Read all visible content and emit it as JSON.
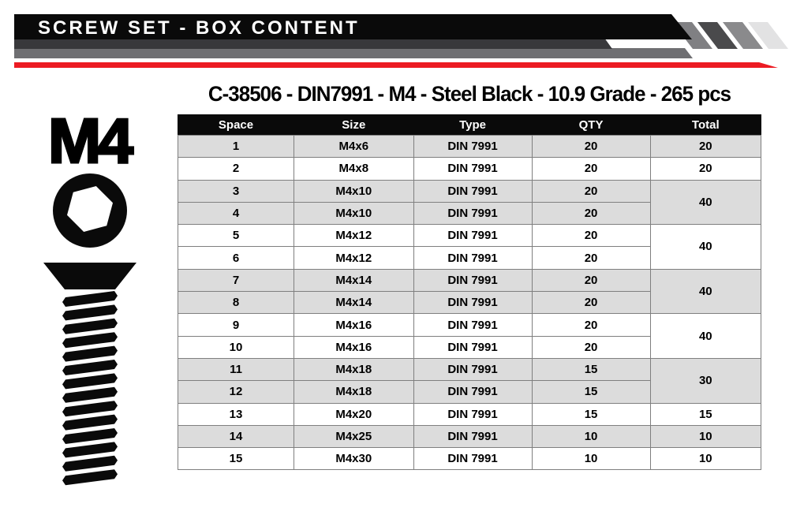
{
  "banner": {
    "title": "SCREW SET - BOX CONTENT"
  },
  "subtitle": "C-38506 - DIN7991 - M4 - Steel Black - 10.9 Grade - 265 pcs",
  "left_graphic": {
    "label": "M4"
  },
  "colors": {
    "accent_red": "#ec1b23",
    "banner_black": "#0a0a0a",
    "band_dark_gray": "#38383b",
    "band_gray": "#6f6f72",
    "stripe_dark": "#4a4a4c",
    "stripe_gray": "#8a8a8c",
    "stripe_light": "#e2e2e3",
    "row_shade_gray": "#dcdcdc",
    "table_border_gray": "#7f7f7f"
  },
  "table": {
    "columns": [
      "Space",
      "Size",
      "Type",
      "QTY",
      "Total"
    ],
    "rows": [
      {
        "space": "1",
        "size": "M4x6",
        "type": "DIN 7991",
        "qty": "20",
        "total": "20",
        "total_rowspan": 1,
        "shade": true
      },
      {
        "space": "2",
        "size": "M4x8",
        "type": "DIN 7991",
        "qty": "20",
        "total": "20",
        "total_rowspan": 1,
        "shade": false
      },
      {
        "space": "3",
        "size": "M4x10",
        "type": "DIN 7991",
        "qty": "20",
        "total": "40",
        "total_rowspan": 2,
        "shade": true
      },
      {
        "space": "4",
        "size": "M4x10",
        "type": "DIN 7991",
        "qty": "20",
        "shade": true
      },
      {
        "space": "5",
        "size": "M4x12",
        "type": "DIN 7991",
        "qty": "20",
        "total": "40",
        "total_rowspan": 2,
        "shade": false
      },
      {
        "space": "6",
        "size": "M4x12",
        "type": "DIN 7991",
        "qty": "20",
        "shade": false
      },
      {
        "space": "7",
        "size": "M4x14",
        "type": "DIN 7991",
        "qty": "20",
        "total": "40",
        "total_rowspan": 2,
        "shade": true
      },
      {
        "space": "8",
        "size": "M4x14",
        "type": "DIN 7991",
        "qty": "20",
        "shade": true
      },
      {
        "space": "9",
        "size": "M4x16",
        "type": "DIN 7991",
        "qty": "20",
        "total": "40",
        "total_rowspan": 2,
        "shade": false
      },
      {
        "space": "10",
        "size": "M4x16",
        "type": "DIN 7991",
        "qty": "20",
        "shade": false
      },
      {
        "space": "11",
        "size": "M4x18",
        "type": "DIN 7991",
        "qty": "15",
        "total": "30",
        "total_rowspan": 2,
        "shade": true
      },
      {
        "space": "12",
        "size": "M4x18",
        "type": "DIN 7991",
        "qty": "15",
        "shade": true
      },
      {
        "space": "13",
        "size": "M4x20",
        "type": "DIN 7991",
        "qty": "15",
        "total": "15",
        "total_rowspan": 1,
        "shade": false
      },
      {
        "space": "14",
        "size": "M4x25",
        "type": "DIN 7991",
        "qty": "10",
        "total": "10",
        "total_rowspan": 1,
        "shade": true
      },
      {
        "space": "15",
        "size": "M4x30",
        "type": "DIN 7991",
        "qty": "10",
        "total": "10",
        "total_rowspan": 1,
        "shade": false
      }
    ]
  }
}
